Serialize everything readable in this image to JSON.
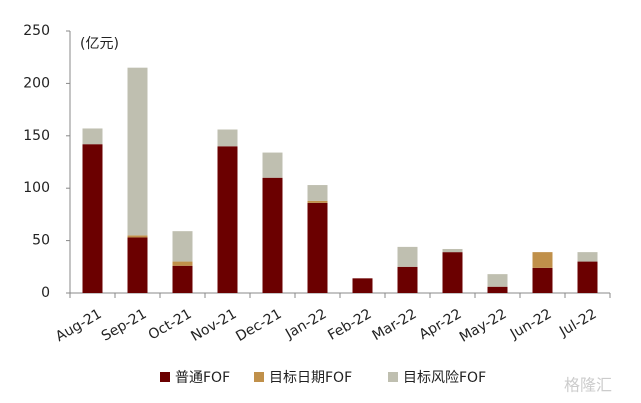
{
  "chart_data": {
    "type": "stacked_bar",
    "y_label": "(亿元)",
    "categories": [
      "Aug-21",
      "Sep-21",
      "Oct-21",
      "Nov-21",
      "Dec-21",
      "Jan-22",
      "Feb-22",
      "Mar-22",
      "Apr-22",
      "May-22",
      "Jun-22",
      "Jul-22"
    ],
    "series": [
      {
        "name": "普通FOF",
        "color": "#6b0000",
        "values": [
          142,
          53,
          26,
          140,
          110,
          86,
          14,
          25,
          39,
          6,
          24,
          30
        ]
      },
      {
        "name": "目标日期FOF",
        "color": "#c0904a",
        "values": [
          0,
          2,
          4,
          0,
          0,
          2,
          0,
          0,
          0,
          0,
          15,
          0
        ]
      },
      {
        "name": "目标风险FOF",
        "color": "#bfbfb0",
        "values": [
          15,
          160,
          29,
          16,
          24,
          15,
          0,
          19,
          3,
          12,
          0,
          9
        ]
      }
    ],
    "ylim": [
      0,
      250
    ],
    "yticks": [
      0,
      50,
      100,
      150,
      200,
      250
    ],
    "legend": "bottom",
    "watermark": "格隆汇"
  }
}
